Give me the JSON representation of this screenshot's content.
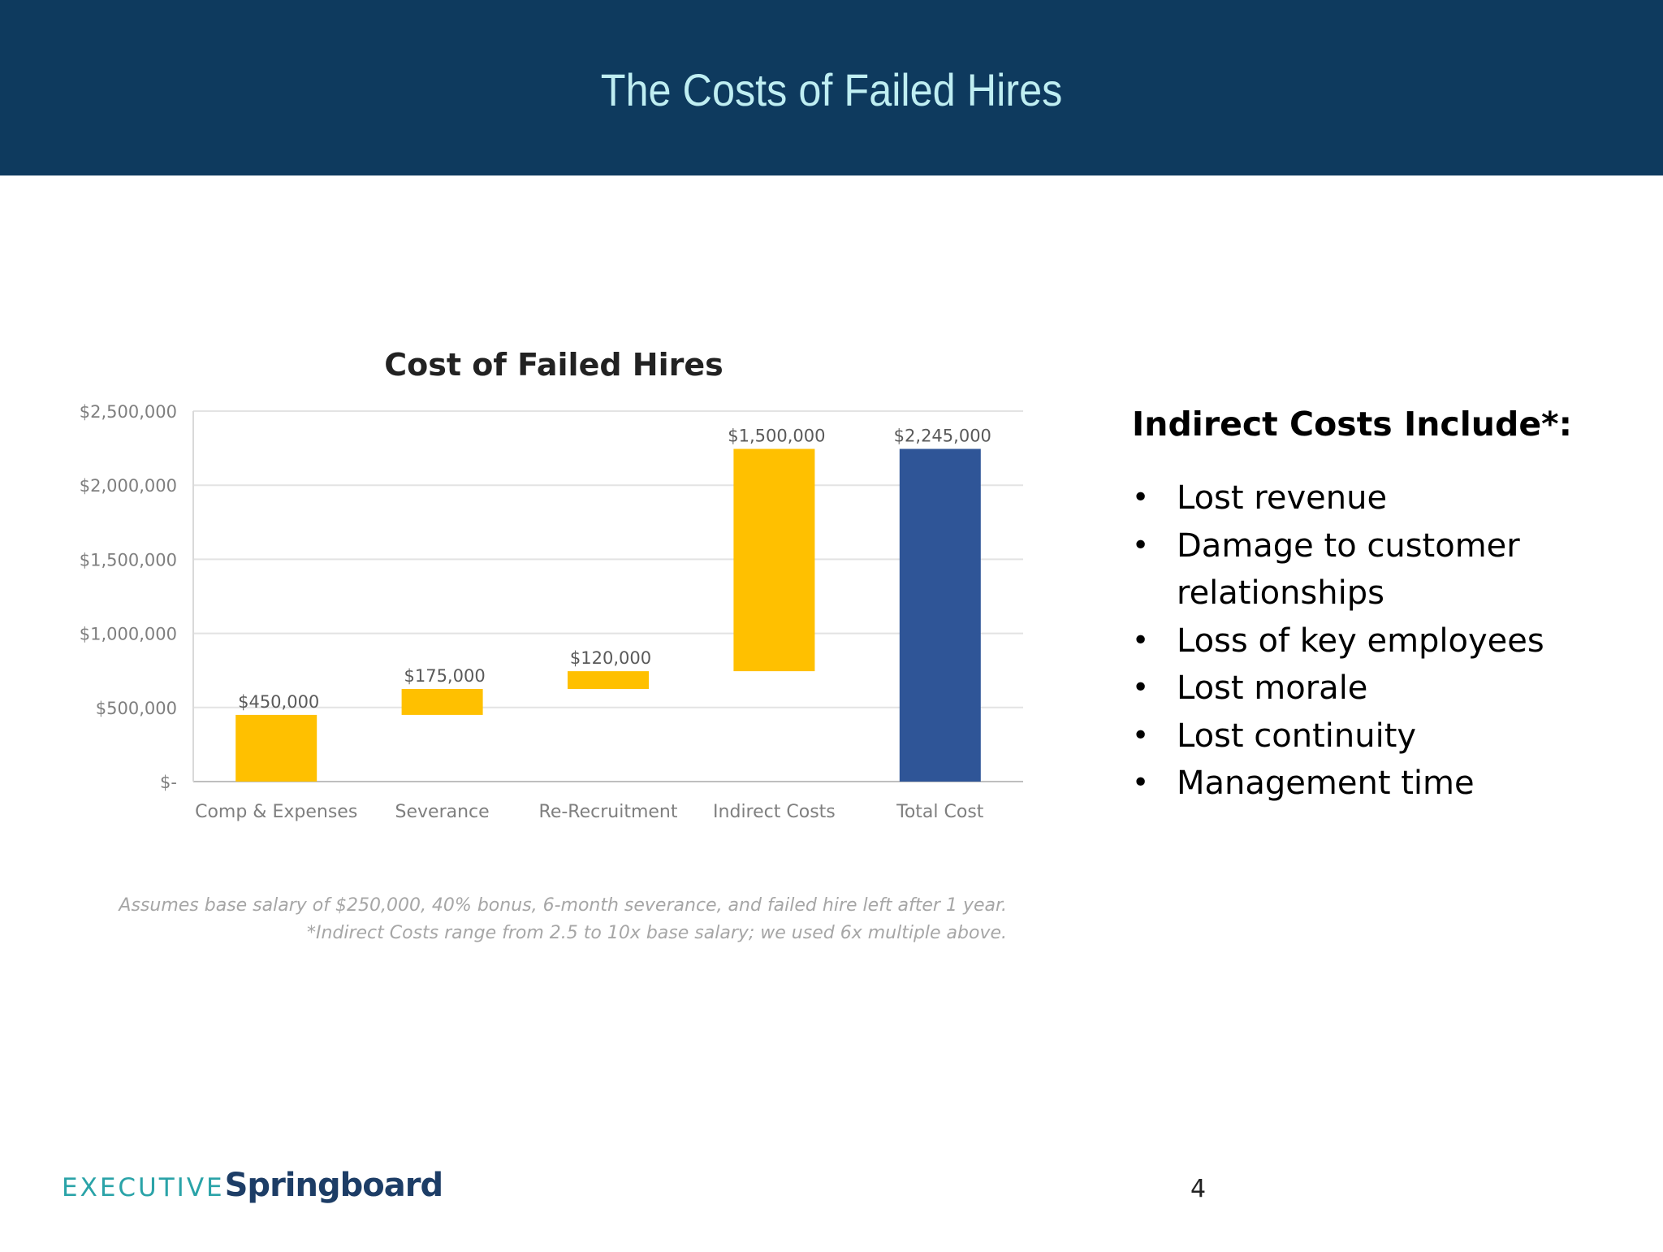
{
  "slide": {
    "title": "The Costs of Failed Hires",
    "page_number": "4",
    "colors": {
      "header_bg": "#0e3a5e",
      "title": "#bfeef2"
    }
  },
  "chart_data": {
    "type": "bar",
    "subtype": "waterfall",
    "title": "Cost of Failed Hires",
    "xlabel": "",
    "ylabel": "",
    "ylim": [
      0,
      2500000
    ],
    "y_ticks": [
      {
        "value": 0,
        "label": "$-"
      },
      {
        "value": 500000,
        "label": "$500,000"
      },
      {
        "value": 1000000,
        "label": "$1,000,000"
      },
      {
        "value": 1500000,
        "label": "$1,500,000"
      },
      {
        "value": 2000000,
        "label": "$2,000,000"
      },
      {
        "value": 2500000,
        "label": "$2,500,000"
      }
    ],
    "grid": true,
    "legend": "none",
    "categories": [
      "Comp & Expenses",
      "Severance",
      "Re-Recruitment",
      "Indirect Costs",
      "Total Cost"
    ],
    "bars": [
      {
        "base": 0,
        "value": 450000,
        "label": "$450,000",
        "color": "#ffc000"
      },
      {
        "base": 450000,
        "value": 175000,
        "label": "$175,000",
        "color": "#ffc000"
      },
      {
        "base": 625000,
        "value": 120000,
        "label": "$120,000",
        "color": "#ffc000"
      },
      {
        "base": 745000,
        "value": 1500000,
        "label": "$1,500,000",
        "color": "#ffc000"
      },
      {
        "base": 0,
        "value": 2245000,
        "label": "$2,245,000",
        "color": "#2f5597"
      }
    ]
  },
  "footnotes": {
    "line1": "Assumes base salary of $250,000, 40% bonus, 6-month severance, and failed hire left after 1 year.",
    "line2": "*Indirect Costs range from 2.5 to 10x base salary; we used 6x multiple above."
  },
  "indirect_panel": {
    "heading": "Indirect Costs Include*:",
    "items": [
      "Lost revenue",
      "Damage to customer relationships",
      "Loss of key employees",
      "Lost morale",
      "Lost continuity",
      "Management time"
    ]
  },
  "logo": {
    "word1": "EXECUTIVE",
    "word2": "Springboard"
  }
}
